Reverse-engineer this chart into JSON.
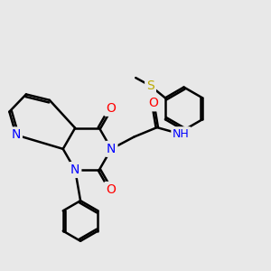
{
  "bg_color": "#e8e8e8",
  "bond_color": "#000000",
  "bond_width": 1.8,
  "atom_colors": {
    "N": "#0000ff",
    "O": "#ff0000",
    "S": "#bbaa00",
    "H": "#5f9ea0",
    "C": "#000000"
  },
  "font_size": 9
}
